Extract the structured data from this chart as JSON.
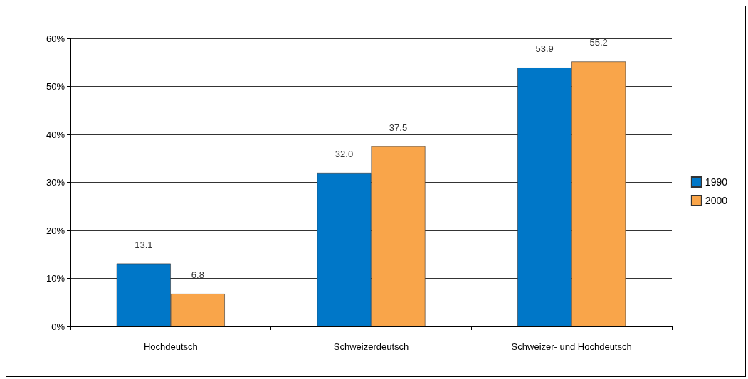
{
  "chart_data": {
    "type": "bar",
    "categories": [
      "Hochdeutsch",
      "Schweizerdeutsch",
      "Schweizer- und Hochdeutsch"
    ],
    "series": [
      {
        "name": "1990",
        "color": "#0077c8",
        "values": [
          13.1,
          32.0,
          53.9
        ],
        "value_labels": [
          "13.1",
          "32.0",
          "53.9"
        ]
      },
      {
        "name": "2000",
        "color": "#f9a54a",
        "values": [
          6.8,
          37.5,
          55.2
        ],
        "value_labels": [
          "6.8",
          "37.5",
          "55.2"
        ]
      }
    ],
    "ylim": [
      0,
      60
    ],
    "yticks": [
      {
        "value": 0,
        "label": "0%"
      },
      {
        "value": 10,
        "label": "10%"
      },
      {
        "value": 20,
        "label": "20%"
      },
      {
        "value": 30,
        "label": "30%"
      },
      {
        "value": 40,
        "label": "40%"
      },
      {
        "value": 50,
        "label": "50%"
      },
      {
        "value": 60,
        "label": "60%"
      }
    ],
    "grid": "y",
    "legend": "right"
  }
}
